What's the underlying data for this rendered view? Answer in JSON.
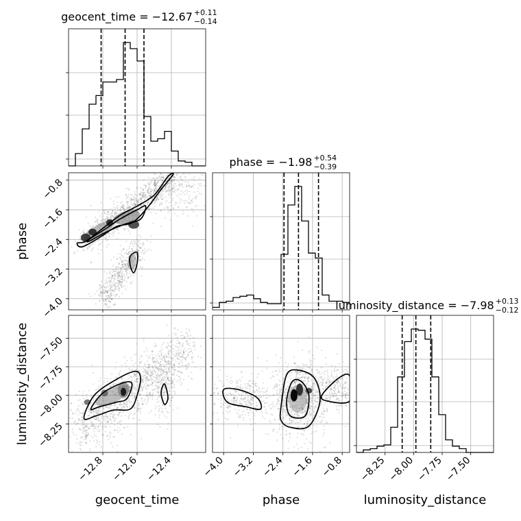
{
  "chart_data": {
    "type": "corner",
    "parameters": [
      "geocent_time",
      "phase",
      "luminosity_distance"
    ],
    "titles": [
      {
        "param": "geocent_time",
        "text": "geocent_time = −12.67",
        "sup": "+0.11",
        "sub": "−0.14",
        "median": -12.67,
        "q_low": -12.81,
        "q_high": -12.56
      },
      {
        "param": "phase",
        "text": "phase = −1.98",
        "sup": "+0.54",
        "sub": "−0.39",
        "median": -1.98,
        "q_low": -2.37,
        "q_high": -1.44
      },
      {
        "param": "luminosity_distance",
        "text": "luminosity_distance = −7.98",
        "sup": "+0.13",
        "sub": "−0.12",
        "median": -7.98,
        "q_low": -8.1,
        "q_high": -7.85
      }
    ],
    "axes": {
      "geocent_time": {
        "range": [
          -13.0,
          -12.2
        ],
        "ticks": [
          -12.8,
          -12.6,
          -12.4
        ],
        "tick_labels": [
          "−12.8",
          "−12.6",
          "−12.4"
        ],
        "label": "geocent_time"
      },
      "phase": {
        "range": [
          -4.3,
          -0.6
        ],
        "ticks": [
          -4.0,
          -3.2,
          -2.4,
          -1.6,
          -0.8
        ],
        "tick_labels": [
          "−4.0",
          "−3.2",
          "−2.4",
          "−1.6",
          "−0.8"
        ],
        "label": "phase"
      },
      "luminosity_distance": {
        "range": [
          -8.5,
          -7.3
        ],
        "ticks": [
          -8.25,
          -8.0,
          -7.75,
          -7.5
        ],
        "tick_labels": [
          "−8.25",
          "−8.00",
          "−7.75",
          "−7.50"
        ],
        "label": "luminosity_distance"
      }
    },
    "histograms": {
      "geocent_time": {
        "bin_edges": [
          -13.0,
          -12.96,
          -12.92,
          -12.88,
          -12.84,
          -12.8,
          -12.76,
          -12.72,
          -12.68,
          -12.64,
          -12.6,
          -12.56,
          -12.52,
          -12.48,
          -12.44,
          -12.4,
          -12.36,
          -12.32,
          -12.28,
          -12.24,
          -12.2
        ],
        "counts": [
          0,
          0.1,
          0.3,
          0.5,
          0.57,
          0.68,
          0.68,
          0.7,
          1.0,
          0.95,
          0.85,
          0.4,
          0.2,
          0.22,
          0.28,
          0.12,
          0.04,
          0.03,
          0,
          0
        ]
      },
      "phase": {
        "bin_edges": [
          -4.3,
          -4.115,
          -3.93,
          -3.745,
          -3.56,
          -3.375,
          -3.19,
          -3.005,
          -2.82,
          -2.635,
          -2.45,
          -2.265,
          -2.08,
          -1.895,
          -1.71,
          -1.525,
          -1.34,
          -1.155,
          -0.97,
          -0.785,
          -0.6
        ],
        "counts": [
          0.02,
          0.06,
          0.07,
          0.1,
          0.11,
          0.12,
          0.09,
          0.06,
          0.05,
          0.05,
          0.45,
          0.85,
          1.0,
          0.72,
          0.46,
          0.42,
          0.12,
          0.07,
          0.07,
          0.06
        ]
      },
      "luminosity_distance": {
        "bin_edges": [
          -8.5,
          -8.44,
          -8.38,
          -8.32,
          -8.26,
          -8.2,
          -8.14,
          -8.08,
          -8.02,
          -7.96,
          -7.9,
          -7.84,
          -7.78,
          -7.72,
          -7.66,
          -7.6,
          -7.54,
          -7.48,
          -7.42,
          -7.36,
          -7.3
        ],
        "counts": [
          0,
          0.02,
          0.03,
          0.05,
          0.06,
          0.2,
          0.6,
          0.88,
          0.98,
          0.97,
          0.9,
          0.6,
          0.3,
          0.1,
          0.05,
          0.03,
          0.0,
          0.0,
          0.0,
          0.0
        ]
      }
    },
    "contours_2d": {
      "phase_vs_geocent_time": [
        {
          "level": "outer",
          "points": [
            [
              -12.9,
              -2.45
            ],
            [
              -12.8,
              -2.1
            ],
            [
              -12.7,
              -1.75
            ],
            [
              -12.6,
              -1.5
            ],
            [
              -12.5,
              -1.2
            ],
            [
              -12.42,
              -0.7
            ],
            [
              -12.39,
              -0.65
            ],
            [
              -12.46,
              -1.05
            ],
            [
              -12.55,
              -1.6
            ],
            [
              -12.63,
              -1.95
            ],
            [
              -12.72,
              -2.05
            ],
            [
              -12.82,
              -2.35
            ],
            [
              -12.92,
              -2.6
            ],
            [
              -12.95,
              -2.5
            ]
          ]
        },
        {
          "level": "middle",
          "points": [
            [
              -12.88,
              -2.4
            ],
            [
              -12.78,
              -2.1
            ],
            [
              -12.7,
              -1.85
            ],
            [
              -12.6,
              -1.6
            ],
            [
              -12.55,
              -1.5
            ],
            [
              -12.58,
              -1.85
            ],
            [
              -12.68,
              -2.0
            ],
            [
              -12.78,
              -2.2
            ],
            [
              -12.88,
              -2.45
            ]
          ]
        },
        {
          "level": "island",
          "points": [
            [
              -12.64,
              -2.85
            ],
            [
              -12.6,
              -2.75
            ],
            [
              -12.6,
              -3.05
            ],
            [
              -12.62,
              -3.3
            ],
            [
              -12.64,
              -3.1
            ]
          ]
        }
      ],
      "luminosity_distance_vs_geocent_time": [
        {
          "level": "outer",
          "points": [
            [
              -12.91,
              -8.2
            ],
            [
              -12.85,
              -8.0
            ],
            [
              -12.72,
              -7.86
            ],
            [
              -12.61,
              -7.79
            ],
            [
              -12.58,
              -7.85
            ],
            [
              -12.6,
              -8.0
            ],
            [
              -12.64,
              -8.12
            ],
            [
              -12.74,
              -8.13
            ],
            [
              -12.84,
              -8.18
            ]
          ]
        },
        {
          "level": "middle",
          "points": [
            [
              -12.87,
              -8.12
            ],
            [
              -12.8,
              -7.98
            ],
            [
              -12.68,
              -7.89
            ],
            [
              -12.63,
              -7.9
            ],
            [
              -12.66,
              -8.03
            ],
            [
              -12.72,
              -8.06
            ],
            [
              -12.82,
              -8.1
            ]
          ]
        },
        {
          "level": "island",
          "points": [
            [
              -12.46,
              -7.98
            ],
            [
              -12.44,
              -7.9
            ],
            [
              -12.42,
              -8.02
            ],
            [
              -12.44,
              -8.08
            ]
          ]
        }
      ],
      "luminosity_distance_vs_phase": [
        {
          "level": "outer",
          "points": [
            [
              -2.45,
              -8.1
            ],
            [
              -2.3,
              -7.82
            ],
            [
              -1.98,
              -7.78
            ],
            [
              -1.55,
              -7.85
            ],
            [
              -1.4,
              -8.05
            ],
            [
              -1.7,
              -8.27
            ],
            [
              -2.2,
              -8.28
            ],
            [
              -2.45,
              -8.22
            ]
          ]
        },
        {
          "level": "middle",
          "points": [
            [
              -2.3,
              -8.05
            ],
            [
              -2.15,
              -7.88
            ],
            [
              -1.9,
              -7.88
            ],
            [
              -1.7,
              -8.0
            ],
            [
              -1.8,
              -8.18
            ],
            [
              -2.2,
              -8.18
            ]
          ]
        },
        {
          "level": "left_lobe",
          "points": [
            [
              -4.0,
              -7.95
            ],
            [
              -3.6,
              -7.95
            ],
            [
              -3.1,
              -8.02
            ],
            [
              -3.0,
              -8.12
            ],
            [
              -3.4,
              -8.1
            ],
            [
              -3.9,
              -8.06
            ]
          ]
        },
        {
          "level": "right_lobe",
          "points": [
            [
              -1.35,
              -8.0
            ],
            [
              -0.9,
              -7.85
            ],
            [
              -0.6,
              -7.83
            ],
            [
              -0.6,
              -8.05
            ],
            [
              -1.2,
              -8.05
            ]
          ]
        }
      ]
    }
  }
}
